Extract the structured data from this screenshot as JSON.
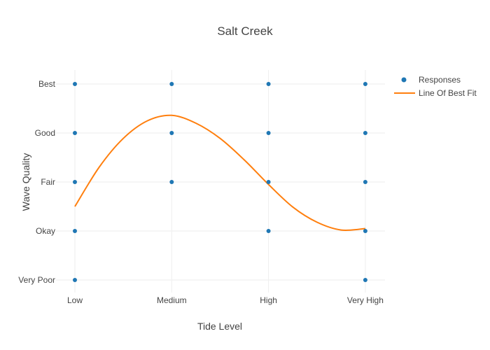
{
  "chart_data": {
    "type": "scatter",
    "title": "Salt Creek",
    "xlabel": "Tide Level",
    "ylabel": "Wave Quality",
    "x_categories": [
      "Low",
      "Medium",
      "High",
      "Very High"
    ],
    "y_categories": [
      "Very Poor",
      "Okay",
      "Fair",
      "Good",
      "Best"
    ],
    "grid": true,
    "legend_position": "top-right",
    "series": [
      {
        "name": "Responses",
        "mode": "markers",
        "color": "#1f77b4",
        "points": [
          {
            "x": "Low",
            "y": "Best"
          },
          {
            "x": "Low",
            "y": "Good"
          },
          {
            "x": "Low",
            "y": "Fair"
          },
          {
            "x": "Low",
            "y": "Okay"
          },
          {
            "x": "Low",
            "y": "Very Poor"
          },
          {
            "x": "Medium",
            "y": "Best"
          },
          {
            "x": "Medium",
            "y": "Good"
          },
          {
            "x": "Medium",
            "y": "Fair"
          },
          {
            "x": "High",
            "y": "Best"
          },
          {
            "x": "High",
            "y": "Good"
          },
          {
            "x": "High",
            "y": "Fair"
          },
          {
            "x": "High",
            "y": "Okay"
          },
          {
            "x": "Very High",
            "y": "Best"
          },
          {
            "x": "Very High",
            "y": "Good"
          },
          {
            "x": "Very High",
            "y": "Fair"
          },
          {
            "x": "Very High",
            "y": "Okay"
          },
          {
            "x": "Very High",
            "y": "Very Poor"
          }
        ]
      },
      {
        "name": "Line Of Best Fit",
        "mode": "line",
        "color": "#ff7f0e",
        "x": [
          0,
          0.25,
          0.5,
          0.75,
          1.0,
          1.25,
          1.5,
          1.75,
          2.0,
          2.25,
          2.5,
          2.75,
          3.0
        ],
        "y": [
          1.5,
          2.3,
          2.89,
          3.25,
          3.36,
          3.2,
          2.89,
          2.45,
          1.95,
          1.49,
          1.18,
          1.02,
          1.05
        ]
      }
    ]
  }
}
